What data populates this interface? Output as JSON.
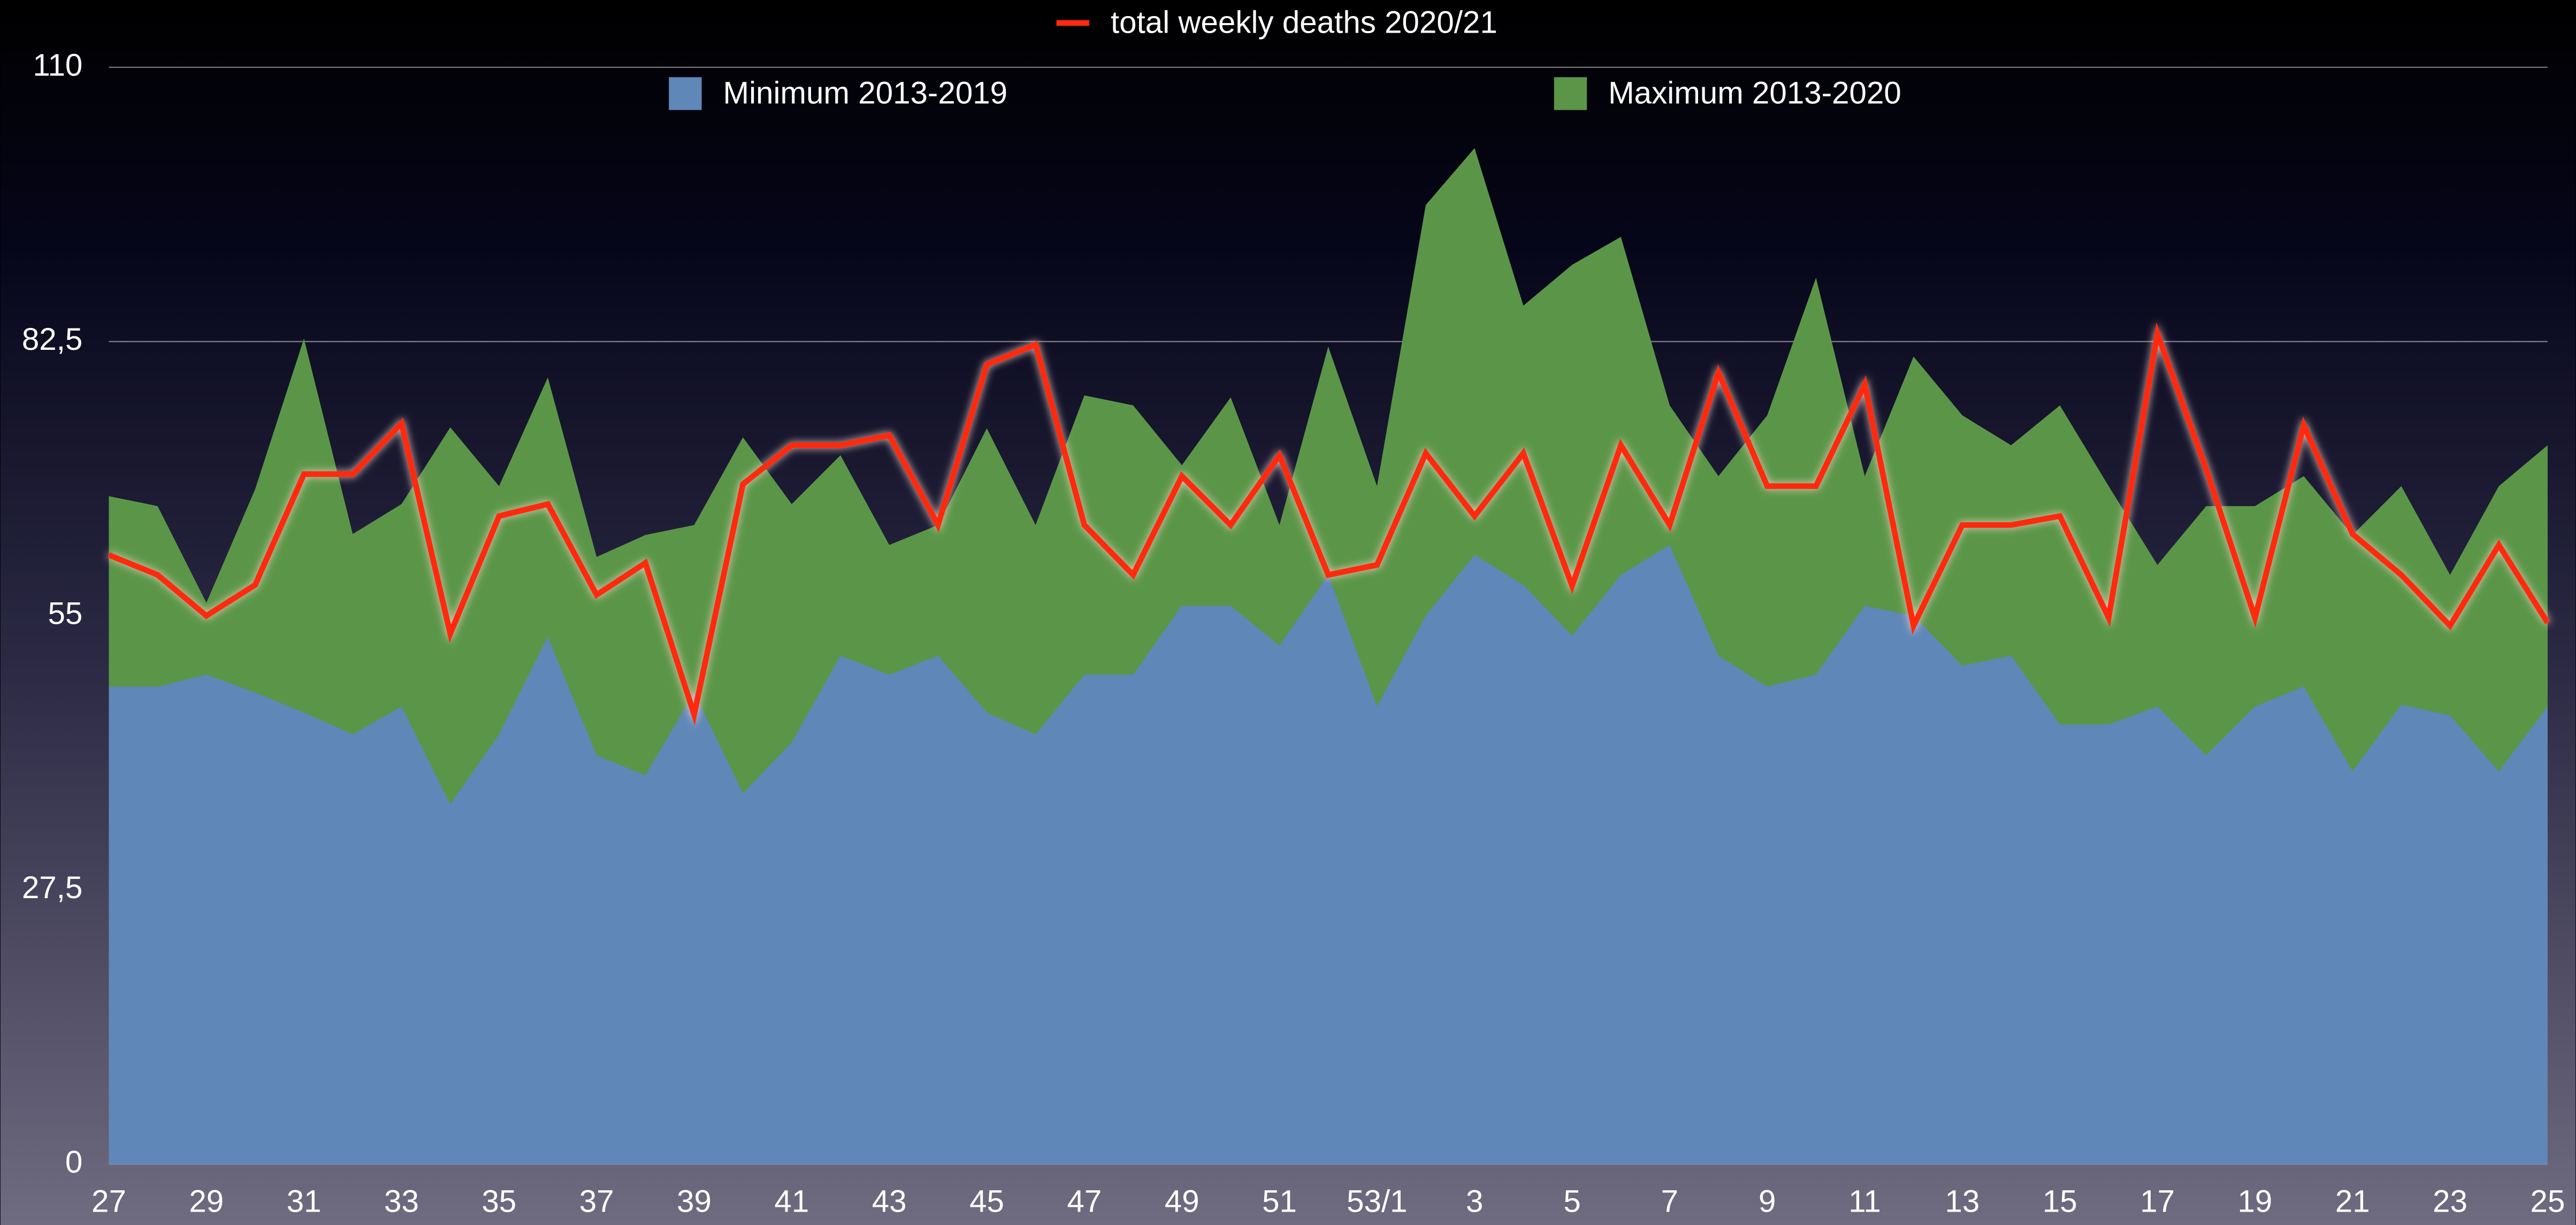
{
  "chart_data": {
    "type": "area-line",
    "categories": [
      "27",
      null,
      "29",
      null,
      "31",
      null,
      "33",
      null,
      "35",
      null,
      "37",
      null,
      "39",
      null,
      "41",
      null,
      "43",
      null,
      "45",
      null,
      "47",
      null,
      "49",
      null,
      "51",
      null,
      "53/1",
      null,
      "3",
      null,
      "5",
      null,
      "7",
      null,
      "9",
      null,
      "11",
      null,
      "13",
      null,
      "15",
      null,
      "17",
      null,
      "19",
      null,
      "21",
      null,
      "23",
      null,
      "25"
    ],
    "series": [
      {
        "name": "Minimum 2013-2019",
        "color": "#5f87b8",
        "kind": "area",
        "values": [
          47.9,
          47.9,
          49.1,
          47.3,
          45.3,
          43.1,
          45.9,
          36.1,
          43.1,
          52.9,
          41,
          39,
          47.3,
          37.2,
          42.3,
          51,
          49.1,
          51,
          45.3,
          43.1,
          49.1,
          49.1,
          56,
          56,
          52,
          59.1,
          45.9,
          55,
          61.1,
          58.1,
          53,
          59.1,
          62.1,
          51,
          47.9,
          49.1,
          56,
          55,
          50,
          51,
          44.1,
          44.1,
          45.9,
          41,
          45.9,
          47.9,
          39.4,
          46.1,
          45,
          39.4,
          45.9
        ]
      },
      {
        "name": "Maximum 2013-2020",
        "color": "#5b9648",
        "kind": "area",
        "values": [
          67,
          66,
          56.3,
          67.7,
          82.8,
          63.2,
          66.2,
          73.9,
          68,
          78.9,
          60.9,
          63.1,
          64.1,
          72.9,
          66.2,
          71.1,
          62.1,
          64.1,
          73.8,
          64.1,
          77.1,
          76.1,
          70.1,
          76.9,
          64.1,
          82,
          68,
          96.2,
          101.9,
          86.1,
          90.2,
          93,
          76.1,
          69,
          75.1,
          88.9,
          69,
          81,
          75.1,
          72.1,
          76.1,
          68,
          60.1,
          66,
          66,
          69,
          63.1,
          68,
          59.1,
          68,
          72.1
        ]
      },
      {
        "name": "total weekly deaths 2020/21",
        "color": "#ff2a10",
        "kind": "line",
        "values": [
          61.1,
          59.1,
          55,
          58.1,
          69.2,
          69.2,
          74.3,
          53.2,
          65,
          66.2,
          57.1,
          60.3,
          45.1,
          68.2,
          72.1,
          72.1,
          73.1,
          64.1,
          80.2,
          82.2,
          64.1,
          59.1,
          69,
          64.1,
          71.1,
          59.1,
          60.1,
          71.3,
          65,
          71.3,
          58,
          72.1,
          64.1,
          79.4,
          68,
          68,
          78.2,
          54,
          64.1,
          64.1,
          65,
          54.8,
          83.3,
          69.7,
          54.8,
          74.1,
          63.2,
          59.1,
          54,
          62.1,
          54.3
        ]
      }
    ],
    "ylim": [
      0,
      110
    ],
    "yticks": [
      0,
      {
        "value": 27.5,
        "label": "27,5"
      },
      55,
      {
        "value": 82.5,
        "label": "82,5"
      },
      110
    ],
    "grid": true
  }
}
